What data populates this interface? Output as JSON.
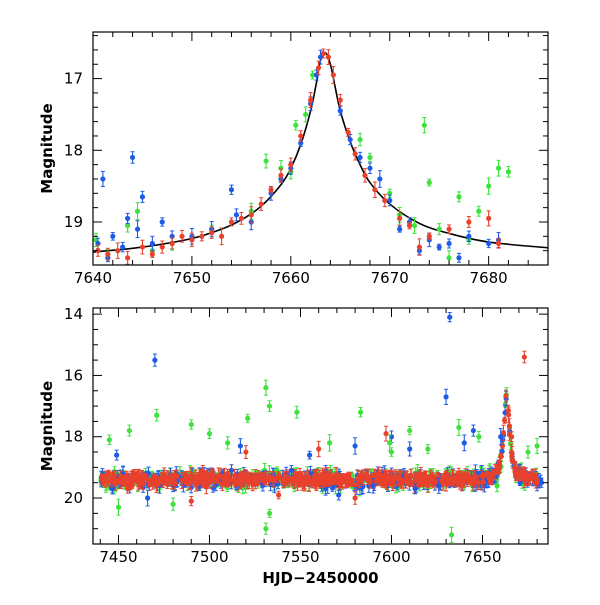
{
  "chart_data": [
    {
      "type": "scatter",
      "panel": "top",
      "xlabel": "",
      "ylabel": "Magnitude",
      "xlim": [
        7640,
        7686
      ],
      "ylim": [
        19.6,
        16.35
      ],
      "y_inverted": true,
      "x_ticks": [
        "7640",
        "7650",
        "7660",
        "7670",
        "7680"
      ],
      "y_ticks": [
        "17",
        "18",
        "19"
      ],
      "grid": false,
      "model_curve": {
        "color": "#000000",
        "x": [
          7640,
          7645,
          7650,
          7653,
          7655,
          7657,
          7659,
          7660,
          7661,
          7662,
          7662.6,
          7663,
          7663.5,
          7664,
          7664.5,
          7665,
          7666,
          7667,
          7668,
          7670,
          7673,
          7676,
          7680,
          7686
        ],
        "y": [
          19.42,
          19.35,
          19.23,
          19.1,
          18.97,
          18.78,
          18.48,
          18.25,
          17.92,
          17.45,
          17.05,
          16.75,
          16.64,
          16.8,
          17.13,
          17.45,
          17.88,
          18.2,
          18.45,
          18.75,
          19.02,
          19.16,
          19.28,
          19.36
        ]
      },
      "series": [
        {
          "color": "#1f5ce6",
          "points": [
            [
              7640.5,
              19.3
            ],
            [
              7641,
              18.4
            ],
            [
              7641.5,
              19.5
            ],
            [
              7642,
              19.2
            ],
            [
              7643,
              19.35
            ],
            [
              7643.5,
              18.95
            ],
            [
              7644,
              18.1
            ],
            [
              7644.5,
              19.1
            ],
            [
              7645,
              18.65
            ],
            [
              7646,
              19.3
            ],
            [
              7647,
              19.0
            ],
            [
              7648,
              19.2
            ],
            [
              7650,
              19.2
            ],
            [
              7652,
              19.1
            ],
            [
              7654,
              18.55
            ],
            [
              7654.5,
              18.9
            ],
            [
              7656,
              19.0
            ],
            [
              7658,
              18.6
            ],
            [
              7659,
              18.4
            ],
            [
              7660,
              18.25
            ],
            [
              7661,
              17.9
            ],
            [
              7662,
              17.35
            ],
            [
              7662.6,
              16.95
            ],
            [
              7663,
              16.7
            ],
            [
              7665,
              17.45
            ],
            [
              7666,
              17.85
            ],
            [
              7667,
              18.1
            ],
            [
              7668,
              18.25
            ],
            [
              7669,
              18.4
            ],
            [
              7670,
              18.7
            ],
            [
              7671,
              19.1
            ],
            [
              7672,
              19.0
            ],
            [
              7673,
              19.4
            ],
            [
              7674,
              19.25
            ],
            [
              7675,
              19.35
            ],
            [
              7676,
              19.3
            ],
            [
              7677,
              19.5
            ],
            [
              7678,
              19.2
            ],
            [
              7680,
              19.3
            ],
            [
              7681,
              19.25
            ]
          ]
        },
        {
          "color": "#e8412c",
          "points": [
            [
              7640.5,
              19.4
            ],
            [
              7641.5,
              19.45
            ],
            [
              7642.5,
              19.4
            ],
            [
              7643.5,
              19.5
            ],
            [
              7645,
              19.35
            ],
            [
              7646,
              19.45
            ],
            [
              7647,
              19.35
            ],
            [
              7648,
              19.3
            ],
            [
              7649,
              19.2
            ],
            [
              7650,
              19.25
            ],
            [
              7651,
              19.2
            ],
            [
              7652,
              19.15
            ],
            [
              7653,
              19.2
            ],
            [
              7654,
              19.0
            ],
            [
              7655,
              18.95
            ],
            [
              7656,
              18.9
            ],
            [
              7657,
              18.75
            ],
            [
              7658,
              18.55
            ],
            [
              7659,
              18.35
            ],
            [
              7660,
              18.2
            ],
            [
              7661,
              17.8
            ],
            [
              7662,
              17.3
            ],
            [
              7662.8,
              16.85
            ],
            [
              7663.3,
              16.65
            ],
            [
              7663.8,
              16.7
            ],
            [
              7664.3,
              16.95
            ],
            [
              7665,
              17.3
            ],
            [
              7665.8,
              17.75
            ],
            [
              7666.5,
              18.05
            ],
            [
              7667.5,
              18.35
            ],
            [
              7668.5,
              18.55
            ],
            [
              7669.5,
              18.7
            ],
            [
              7671,
              18.95
            ],
            [
              7672,
              19.05
            ],
            [
              7673,
              19.35
            ],
            [
              7674,
              19.2
            ],
            [
              7676,
              19.1
            ],
            [
              7678,
              19.0
            ],
            [
              7680,
              18.95
            ],
            [
              7681,
              19.3
            ]
          ]
        },
        {
          "color": "#3de23d",
          "points": [
            [
              7640.3,
              19.25
            ],
            [
              7641.5,
              19.45
            ],
            [
              7643.5,
              19.05
            ],
            [
              7644.5,
              18.85
            ],
            [
              7646,
              19.4
            ],
            [
              7648,
              19.3
            ],
            [
              7652,
              19.1
            ],
            [
              7656,
              18.85
            ],
            [
              7657.5,
              18.15
            ],
            [
              7659,
              18.25
            ],
            [
              7660,
              18.3
            ],
            [
              7660.5,
              17.65
            ],
            [
              7661.5,
              17.5
            ],
            [
              7662.2,
              16.95
            ],
            [
              7667,
              17.85
            ],
            [
              7668,
              18.1
            ],
            [
              7670,
              18.6
            ],
            [
              7671,
              18.9
            ],
            [
              7672.5,
              19.05
            ],
            [
              7673.5,
              17.65
            ],
            [
              7674,
              18.45
            ],
            [
              7675,
              19.1
            ],
            [
              7676,
              19.5
            ],
            [
              7677,
              18.65
            ],
            [
              7678,
              19.25
            ],
            [
              7679,
              18.85
            ],
            [
              7680,
              18.5
            ],
            [
              7681,
              18.25
            ],
            [
              7682,
              18.3
            ]
          ]
        }
      ]
    },
    {
      "type": "scatter",
      "panel": "bottom",
      "xlabel": "HJD−2450000",
      "ylabel": "Magnitude",
      "xlim": [
        7436,
        7686
      ],
      "ylim": [
        21.5,
        13.8
      ],
      "y_inverted": true,
      "x_ticks": [
        "7450",
        "7500",
        "7550",
        "7600",
        "7650"
      ],
      "y_ticks": [
        "14",
        "16",
        "18",
        "20"
      ],
      "grid": false,
      "baseline_magnitude": 19.4,
      "series": [
        {
          "color": "#1f5ce6",
          "outliers": [
            [
              7470,
              15.5
            ],
            [
              7630,
              16.7
            ],
            [
              7632,
              14.1
            ],
            [
              7640,
              18.2
            ],
            [
              7645,
              17.8
            ],
            [
              7449,
              18.6
            ],
            [
              7555,
              18.6
            ],
            [
              7580,
              18.3
            ],
            [
              7600,
              18.0
            ],
            [
              7610,
              18.4
            ],
            [
              7660,
              18.0
            ],
            [
              7466,
              20.0
            ],
            [
              7517,
              18.3
            ],
            [
              7545,
              19.1
            ],
            [
              7571,
              19.9
            ],
            [
              7590,
              19.6
            ],
            [
              7613,
              19.7
            ],
            [
              7626,
              19.6
            ]
          ]
        },
        {
          "color": "#e8412c",
          "outliers": [
            [
              7673,
              15.4
            ],
            [
              7597,
              17.9
            ],
            [
              7520,
              18.5
            ],
            [
              7560,
              18.4
            ],
            [
              7666,
              18.0
            ],
            [
              7580,
              20.0
            ],
            [
              7538,
              19.9
            ],
            [
              7490,
              20.1
            ],
            [
              7455,
              19.7
            ],
            [
              7620,
              19.6
            ],
            [
              7670,
              19.2
            ]
          ]
        },
        {
          "color": "#3de23d",
          "outliers": [
            [
              7471,
              17.3
            ],
            [
              7531,
              16.4
            ],
            [
              7533,
              17.0
            ],
            [
              7548,
              17.2
            ],
            [
              7566,
              18.2
            ],
            [
              7583,
              17.2
            ],
            [
              7610,
              17.8
            ],
            [
              7445,
              18.1
            ],
            [
              7456,
              17.8
            ],
            [
              7490,
              17.6
            ],
            [
              7500,
              17.9
            ],
            [
              7510,
              18.2
            ],
            [
              7521,
              17.4
            ],
            [
              7531,
              21.0
            ],
            [
              7533,
              20.5
            ],
            [
              7599,
              18.2
            ],
            [
              7637,
              17.7
            ],
            [
              7648,
              18.0
            ],
            [
              7658,
              19.6
            ],
            [
              7675,
              18.5
            ],
            [
              7680,
              18.3
            ],
            [
              7633,
              21.2
            ],
            [
              7450,
              20.3
            ],
            [
              7480,
              20.2
            ],
            [
              7600,
              18.5
            ],
            [
              7620,
              18.4
            ]
          ]
        }
      ]
    }
  ]
}
